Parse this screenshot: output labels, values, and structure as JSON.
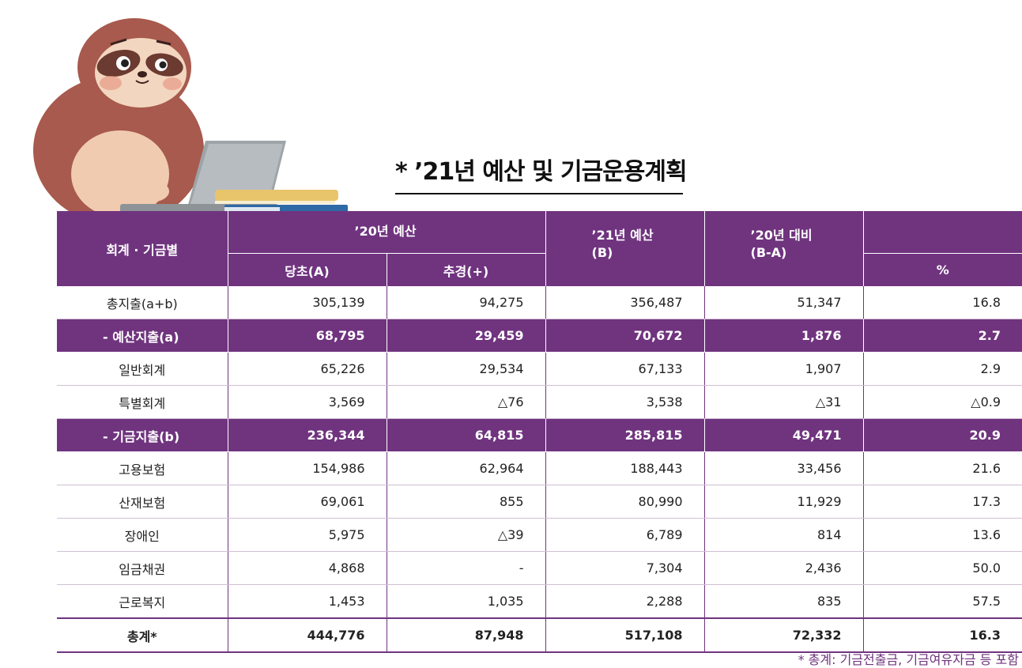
{
  "title": "* ’21년 예산 및 기금운용계획",
  "table": {
    "header": {
      "account": "회계 · 기금별",
      "budget20": "’20년 예산",
      "initial": "당초(A)",
      "supplementary": "추경(+)",
      "budget21": "’21년 예산\n(B)",
      "vs20": "’20년 대비\n(B-A)",
      "percent": "%"
    },
    "rows": [
      {
        "label": "총지출(a+b)",
        "a": "305,139",
        "sup": "94,275",
        "b": "356,487",
        "diff": "51,347",
        "pct": "16.8",
        "type": "normal"
      },
      {
        "label": "- 예산지출(a)",
        "a": "68,795",
        "sup": "29,459",
        "b": "70,672",
        "diff": "1,876",
        "pct": "2.7",
        "type": "sub"
      },
      {
        "label": "일반회계",
        "a": "65,226",
        "sup": "29,534",
        "b": "67,133",
        "diff": "1,907",
        "pct": "2.9",
        "type": "normal"
      },
      {
        "label": "특별회계",
        "a": "3,569",
        "sup": "△76",
        "b": "3,538",
        "diff": "△31",
        "pct": "△0.9",
        "type": "normal"
      },
      {
        "label": "- 기금지출(b)",
        "a": "236,344",
        "sup": "64,815",
        "b": "285,815",
        "diff": "49,471",
        "pct": "20.9",
        "type": "sub"
      },
      {
        "label": "고용보험",
        "a": "154,986",
        "sup": "62,964",
        "b": "188,443",
        "diff": "33,456",
        "pct": "21.6",
        "type": "normal"
      },
      {
        "label": "산재보험",
        "a": "69,061",
        "sup": "855",
        "b": "80,990",
        "diff": "11,929",
        "pct": "17.3",
        "type": "normal"
      },
      {
        "label": "장애인",
        "a": "5,975",
        "sup": "△39",
        "b": "6,789",
        "diff": "814",
        "pct": "13.6",
        "type": "normal"
      },
      {
        "label": "임금채권",
        "a": "4,868",
        "sup": "-",
        "b": "7,304",
        "diff": "2,436",
        "pct": "50.0",
        "type": "normal"
      },
      {
        "label": "근로복지",
        "a": "1,453",
        "sup": "1,035",
        "b": "2,288",
        "diff": "835",
        "pct": "57.5",
        "type": "normal"
      },
      {
        "label": "총계*",
        "a": "444,776",
        "sup": "87,948",
        "b": "517,108",
        "diff": "72,332",
        "pct": "16.3",
        "type": "total"
      }
    ]
  },
  "footnote": "* 총계: 기금전출금, 기금여유자금 등 포함",
  "colors": {
    "accent": "#70347f"
  }
}
